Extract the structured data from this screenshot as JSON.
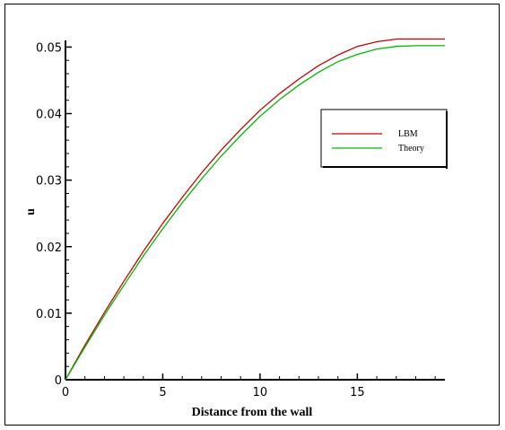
{
  "chart_data": {
    "type": "line",
    "title": "",
    "xlabel": "Distance  from the wall",
    "ylabel": "u",
    "xlim": [
      0,
      19.5
    ],
    "ylim": [
      0,
      0.051
    ],
    "x_ticks": [
      0,
      5,
      10,
      15
    ],
    "x_tick_labels": [
      "0",
      "5",
      "10",
      "15"
    ],
    "y_ticks": [
      0,
      0.01,
      0.02,
      0.03,
      0.04,
      0.05
    ],
    "y_tick_labels": [
      "0",
      "0.01",
      "0.02",
      "0.03",
      "0.04",
      "0.05"
    ],
    "grid": false,
    "legend_position": "right",
    "series": [
      {
        "name": "LBM",
        "color": "#cc0000",
        "x": [
          0,
          1,
          2,
          3,
          4,
          5,
          6,
          7,
          8,
          9,
          10,
          11,
          12,
          13,
          14,
          15,
          16,
          17,
          18,
          19,
          19.5
        ],
        "y": [
          0,
          0.0052,
          0.0101,
          0.0148,
          0.0193,
          0.0235,
          0.0274,
          0.0311,
          0.0345,
          0.0376,
          0.0405,
          0.043,
          0.0452,
          0.0472,
          0.0488,
          0.0501,
          0.0508,
          0.0512,
          0.0512,
          0.0512,
          0.0512
        ]
      },
      {
        "name": "Theory",
        "color": "#00bb00",
        "x": [
          0,
          1,
          2,
          3,
          4,
          5,
          6,
          7,
          8,
          9,
          10,
          11,
          12,
          13,
          14,
          15,
          16,
          17,
          18,
          19,
          19.5
        ],
        "y": [
          0,
          0.0049,
          0.0097,
          0.0142,
          0.0186,
          0.0227,
          0.0266,
          0.0302,
          0.0336,
          0.0367,
          0.0396,
          0.0421,
          0.0443,
          0.0462,
          0.0478,
          0.0489,
          0.0497,
          0.0501,
          0.0502,
          0.0502,
          0.0502
        ]
      }
    ]
  }
}
